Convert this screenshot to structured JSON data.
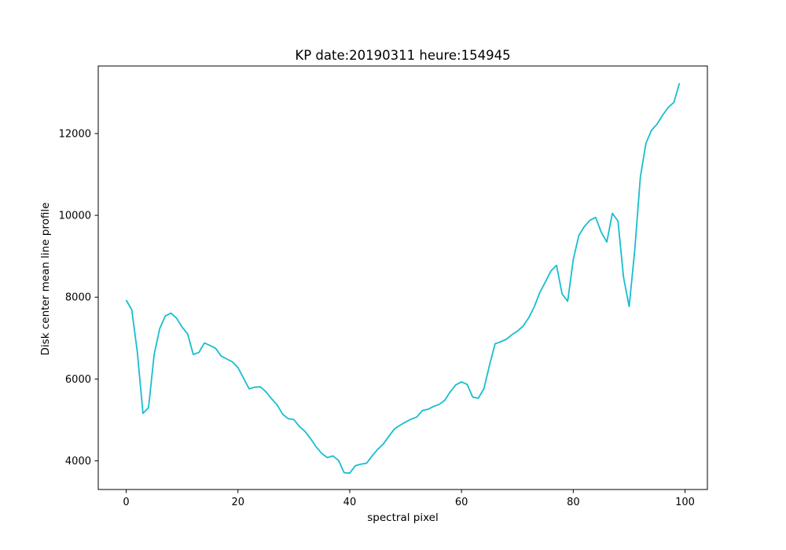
{
  "chart_data": {
    "type": "line",
    "title": "KP date:20190311 heure:154945",
    "xlabel": "spectral pixel",
    "ylabel": "Disk center mean line profile",
    "xlim": [
      -5,
      104
    ],
    "ylim": [
      3300,
      13650
    ],
    "xticks": [
      0,
      20,
      40,
      60,
      80,
      100
    ],
    "xtick_labels": [
      "0",
      "20",
      "40",
      "60",
      "80",
      "100"
    ],
    "yticks": [
      4000,
      6000,
      8000,
      10000,
      12000
    ],
    "ytick_labels": [
      "4000",
      "6000",
      "8000",
      "10000",
      "12000"
    ],
    "grid": false,
    "series": [
      {
        "color": "#17becf",
        "x": [
          0,
          1,
          2,
          3,
          4,
          5,
          6,
          7,
          8,
          9,
          10,
          11,
          12,
          13,
          14,
          15,
          16,
          17,
          18,
          19,
          20,
          21,
          22,
          23,
          24,
          25,
          26,
          27,
          28,
          29,
          30,
          31,
          32,
          33,
          34,
          35,
          36,
          37,
          38,
          39,
          40,
          41,
          42,
          43,
          44,
          45,
          46,
          47,
          48,
          49,
          50,
          51,
          52,
          53,
          54,
          55,
          56,
          57,
          58,
          59,
          60,
          61,
          62,
          63,
          64,
          65,
          66,
          67,
          68,
          69,
          70,
          71,
          72,
          73,
          74,
          75,
          76,
          77,
          78,
          79,
          80,
          81,
          82,
          83,
          84,
          85,
          86,
          87,
          88,
          89,
          90,
          91,
          92,
          93,
          94,
          95,
          96,
          97,
          98,
          99
        ],
        "y": [
          7930,
          7690,
          6650,
          5160,
          5300,
          6600,
          7230,
          7540,
          7610,
          7490,
          7270,
          7100,
          6600,
          6650,
          6880,
          6820,
          6750,
          6560,
          6490,
          6420,
          6280,
          6020,
          5760,
          5800,
          5810,
          5690,
          5520,
          5370,
          5140,
          5030,
          5010,
          4840,
          4720,
          4540,
          4340,
          4180,
          4080,
          4120,
          4010,
          3710,
          3700,
          3880,
          3920,
          3940,
          4120,
          4280,
          4410,
          4600,
          4780,
          4870,
          4950,
          5020,
          5070,
          5230,
          5260,
          5330,
          5380,
          5480,
          5690,
          5860,
          5930,
          5870,
          5560,
          5530,
          5760,
          6330,
          6860,
          6910,
          6970,
          7080,
          7170,
          7290,
          7490,
          7760,
          8110,
          8370,
          8640,
          8780,
          8080,
          7900,
          8920,
          9510,
          9730,
          9880,
          9950,
          9590,
          9350,
          10050,
          9860,
          8480,
          7770,
          9150,
          10930,
          11760,
          12080,
          12230,
          12450,
          12640,
          12760,
          13230
        ]
      }
    ]
  }
}
